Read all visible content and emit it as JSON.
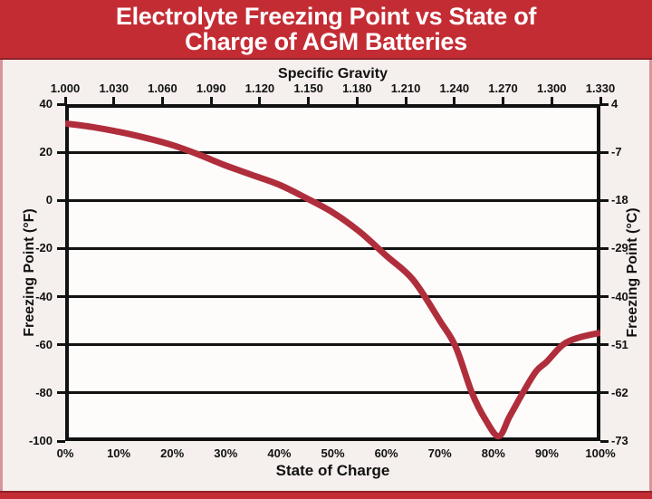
{
  "title": {
    "line1": "Electrolyte Freezing Point vs State of",
    "line2": "Charge of AGM Batteries"
  },
  "colors": {
    "banner": "#c42c34",
    "banner_edge": "#8e2127",
    "side_border": "#d9949a",
    "curve": "#b02e3c",
    "axis": "#111111",
    "page_bg": "#f5efed",
    "plot_bg": "#fdfcfb",
    "title_text": "#ffffff"
  },
  "chart_data": {
    "type": "line",
    "title": "Electrolyte Freezing Point vs State of Charge of AGM Batteries",
    "grid": "horizontal",
    "legend": "none",
    "x_bottom": {
      "label": "State of Charge",
      "ticks": [
        "0%",
        "10%",
        "20%",
        "30%",
        "40%",
        "50%",
        "60%",
        "70%",
        "80%",
        "90%",
        "100%"
      ],
      "range": [
        0,
        100
      ]
    },
    "x_top": {
      "label": "Specific Gravity",
      "ticks": [
        "1.000",
        "1.030",
        "1.060",
        "1.090",
        "1.120",
        "1.150",
        "1.180",
        "1.210",
        "1.240",
        "1.270",
        "1.300",
        "1.330"
      ],
      "range": [
        1.0,
        1.33
      ]
    },
    "y_left": {
      "label": "Freezing Point (°F)",
      "ticks": [
        "40",
        "20",
        "0",
        "-20",
        "-40",
        "-60",
        "-80",
        "-100"
      ],
      "range": [
        40,
        -100
      ]
    },
    "y_right": {
      "label": "Freezing Point (°C)",
      "ticks": [
        "4",
        "-7",
        "-18",
        "-29",
        "-40",
        "-51",
        "-62",
        "-73"
      ]
    },
    "series": [
      {
        "name": "Electrolyte freezing point (°F) vs State of Charge (%)",
        "color": "#b02e3c",
        "points": [
          [
            0,
            32
          ],
          [
            5,
            30.5
          ],
          [
            10,
            28.5
          ],
          [
            15,
            26
          ],
          [
            20,
            23
          ],
          [
            25,
            19
          ],
          [
            30,
            14.5
          ],
          [
            35,
            10.5
          ],
          [
            40,
            6.5
          ],
          [
            45,
            1
          ],
          [
            50,
            -5
          ],
          [
            55,
            -13
          ],
          [
            60,
            -23
          ],
          [
            65,
            -33
          ],
          [
            70,
            -50
          ],
          [
            73,
            -61
          ],
          [
            76,
            -80
          ],
          [
            78.5,
            -91
          ],
          [
            81,
            -98
          ],
          [
            83,
            -90
          ],
          [
            85.5,
            -80
          ],
          [
            88,
            -71
          ],
          [
            90,
            -67
          ],
          [
            93,
            -60
          ],
          [
            96,
            -57
          ],
          [
            100,
            -55
          ]
        ]
      }
    ]
  }
}
